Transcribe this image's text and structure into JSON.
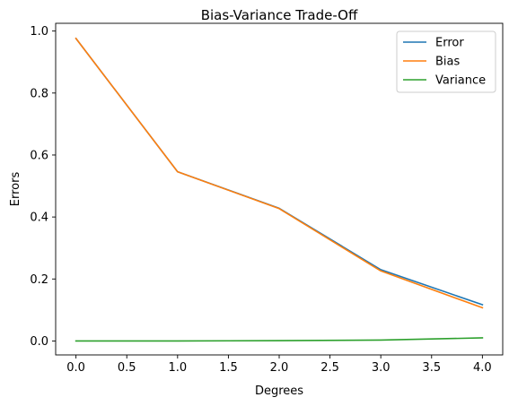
{
  "chart_data": {
    "type": "line",
    "title": "Bias-Variance Trade-Off",
    "xlabel": "Degrees",
    "ylabel": "Errors",
    "xlim": [
      -0.2,
      4.2
    ],
    "ylim": [
      -0.045,
      1.025
    ],
    "xticks": [
      0.0,
      0.5,
      1.0,
      1.5,
      2.0,
      2.5,
      3.0,
      3.5,
      4.0
    ],
    "xtick_labels": [
      "0.0",
      "0.5",
      "1.0",
      "1.5",
      "2.0",
      "2.5",
      "3.0",
      "3.5",
      "4.0"
    ],
    "yticks": [
      0.0,
      0.2,
      0.4,
      0.6,
      0.8,
      1.0
    ],
    "ytick_labels": [
      "0.0",
      "0.2",
      "0.4",
      "0.6",
      "0.8",
      "1.0"
    ],
    "grid": false,
    "legend": "top-right",
    "x": [
      0,
      1,
      2,
      3,
      4
    ],
    "series": [
      {
        "name": "Error",
        "color": "#1f77b4",
        "values": [
          0.976,
          0.546,
          0.428,
          0.23,
          0.117
        ]
      },
      {
        "name": "Bias",
        "color": "#ff7f0e",
        "values": [
          0.976,
          0.546,
          0.427,
          0.226,
          0.107
        ]
      },
      {
        "name": "Variance",
        "color": "#2ca02c",
        "values": [
          0.0,
          0.0,
          0.001,
          0.003,
          0.01
        ]
      }
    ]
  }
}
